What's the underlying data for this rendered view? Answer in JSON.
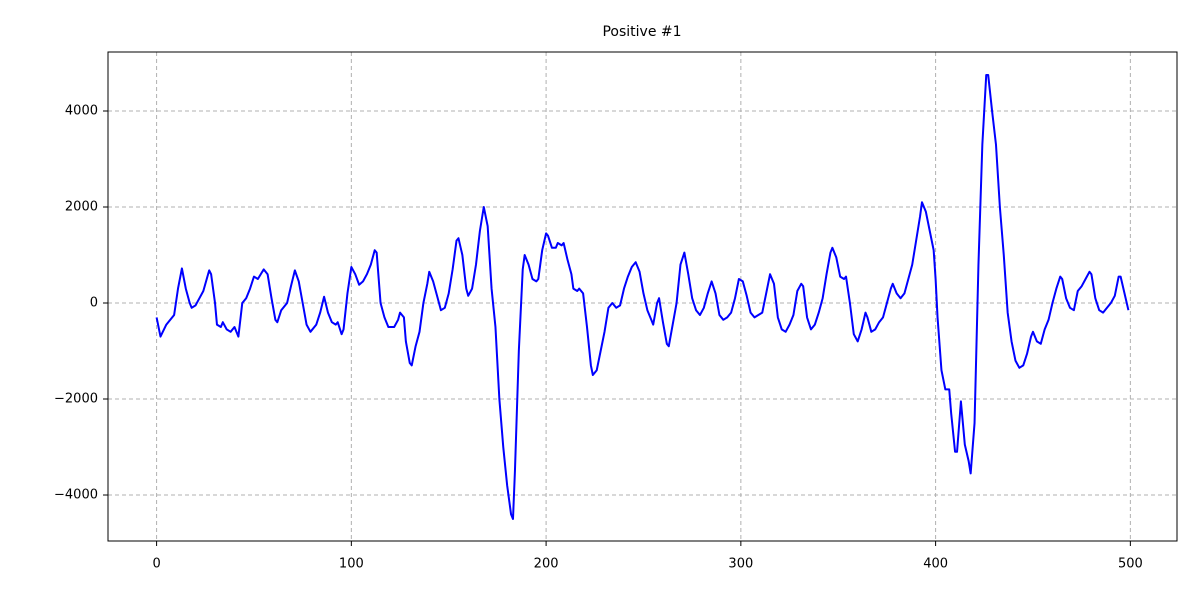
{
  "chart_data": {
    "type": "line",
    "title": "Positive #1",
    "color": "#0000ff",
    "grid": true,
    "xlim": [
      -24.95,
      523.95
    ],
    "ylim": [
      -4958,
      5229
    ],
    "xticks": [
      0,
      100,
      200,
      300,
      400,
      500
    ],
    "yticks": [
      {
        "value": -4000,
        "label": "−4000"
      },
      {
        "value": -2000,
        "label": "−2000"
      },
      0,
      2000,
      4000
    ],
    "x": [
      0,
      2,
      5,
      9,
      11,
      13,
      15,
      17,
      18,
      20,
      22,
      24,
      27,
      28,
      30,
      31,
      33,
      34,
      36,
      38,
      40,
      42,
      44,
      46,
      48,
      50,
      52,
      55,
      57,
      59,
      61,
      62,
      64,
      67,
      69,
      71,
      73,
      75,
      77,
      79,
      82,
      84,
      86,
      88,
      90,
      92,
      93,
      95,
      96,
      98,
      100,
      102,
      104,
      106,
      108,
      110,
      112,
      113,
      115,
      117,
      119,
      122,
      124,
      125,
      127,
      128,
      130,
      131,
      133,
      135,
      137,
      139,
      140,
      142,
      144,
      146,
      148,
      150,
      152,
      154,
      155,
      157,
      159,
      160,
      162,
      164,
      166,
      168,
      170,
      172,
      174,
      176,
      178,
      180,
      182,
      183,
      184,
      186,
      188,
      189,
      191,
      193,
      195,
      196,
      198,
      200,
      201,
      203,
      205,
      206,
      208,
      209,
      211,
      213,
      214,
      216,
      217,
      219,
      221,
      223,
      224,
      226,
      228,
      230,
      232,
      234,
      236,
      238,
      240,
      242,
      244,
      246,
      248,
      250,
      252,
      254,
      255,
      257,
      258,
      260,
      262,
      263,
      265,
      267,
      269,
      271,
      273,
      275,
      277,
      279,
      281,
      283,
      285,
      287,
      289,
      291,
      293,
      295,
      297,
      299,
      301,
      303,
      305,
      307,
      309,
      311,
      313,
      315,
      317,
      319,
      321,
      323,
      325,
      327,
      329,
      331,
      332,
      334,
      336,
      338,
      340,
      342,
      344,
      346,
      347,
      349,
      351,
      353,
      354,
      356,
      358,
      360,
      362,
      364,
      365,
      367,
      369,
      371,
      373,
      375,
      377,
      378,
      380,
      382,
      384,
      386,
      388,
      390,
      392,
      393,
      395,
      397,
      399,
      400,
      401,
      403,
      405,
      407,
      408,
      410,
      411,
      413,
      415,
      417,
      418,
      420,
      422,
      424,
      426,
      427,
      429,
      431,
      433,
      435,
      437,
      439,
      441,
      443,
      445,
      447,
      449,
      450,
      452,
      454,
      456,
      458,
      460,
      462,
      464,
      465,
      467,
      469,
      471,
      473,
      475,
      477,
      479,
      480,
      482,
      484,
      486,
      488,
      490,
      492,
      494,
      495,
      497,
      499
    ],
    "values": [
      -300,
      -700,
      -450,
      -250,
      300,
      720,
      300,
      0,
      -100,
      -50,
      100,
      250,
      680,
      600,
      0,
      -450,
      -500,
      -400,
      -550,
      -600,
      -500,
      -700,
      0,
      100,
      300,
      550,
      500,
      700,
      600,
      100,
      -350,
      -400,
      -150,
      0,
      350,
      680,
      450,
      0,
      -450,
      -600,
      -450,
      -200,
      130,
      -200,
      -400,
      -450,
      -400,
      -650,
      -550,
      200,
      750,
      600,
      380,
      450,
      600,
      800,
      1100,
      1050,
      0,
      -300,
      -500,
      -500,
      -350,
      -200,
      -300,
      -800,
      -1250,
      -1300,
      -900,
      -600,
      0,
      400,
      650,
      450,
      150,
      -150,
      -100,
      200,
      700,
      1300,
      1350,
      1000,
      300,
      150,
      300,
      800,
      1500,
      2000,
      1600,
      300,
      -500,
      -2000,
      -3000,
      -3800,
      -4400,
      -4500,
      -3500,
      -1000,
      700,
      1000,
      800,
      500,
      450,
      500,
      1100,
      1450,
      1400,
      1150,
      1150,
      1250,
      1200,
      1250,
      900,
      600,
      300,
      250,
      300,
      200,
      -500,
      -1300,
      -1500,
      -1400,
      -1000,
      -600,
      -100,
      0,
      -100,
      -50,
      300,
      550,
      750,
      850,
      650,
      200,
      -150,
      -350,
      -450,
      0,
      100,
      -400,
      -850,
      -900,
      -450,
      0,
      800,
      1050,
      600,
      100,
      -150,
      -250,
      -100,
      200,
      450,
      200,
      -250,
      -350,
      -300,
      -200,
      100,
      500,
      450,
      150,
      -200,
      -300,
      -250,
      -200,
      200,
      600,
      400,
      -300,
      -550,
      -600,
      -450,
      -250,
      250,
      400,
      350,
      -300,
      -550,
      -450,
      -200,
      100,
      600,
      1050,
      1150,
      950,
      550,
      500,
      550,
      0,
      -650,
      -800,
      -550,
      -200,
      -300,
      -600,
      -550,
      -400,
      -300,
      0,
      300,
      400,
      200,
      100,
      200,
      500,
      800,
      1300,
      1800,
      2100,
      1900,
      1500,
      1100,
      500,
      -300,
      -1400,
      -1800,
      -1800,
      -2300,
      -3100,
      -3100,
      -2050,
      -2950,
      -3300,
      -3550,
      -2500,
      800,
      3300,
      4750,
      4750,
      4000,
      3300,
      2000,
      1000,
      -200,
      -800,
      -1200,
      -1350,
      -1300,
      -1050,
      -700,
      -600,
      -800,
      -850,
      -550,
      -350,
      0,
      300,
      550,
      500,
      100,
      -100,
      -150,
      250,
      350,
      500,
      650,
      600,
      100,
      -150,
      -200,
      -100,
      0,
      150,
      550,
      550,
      200,
      -150
    ]
  }
}
